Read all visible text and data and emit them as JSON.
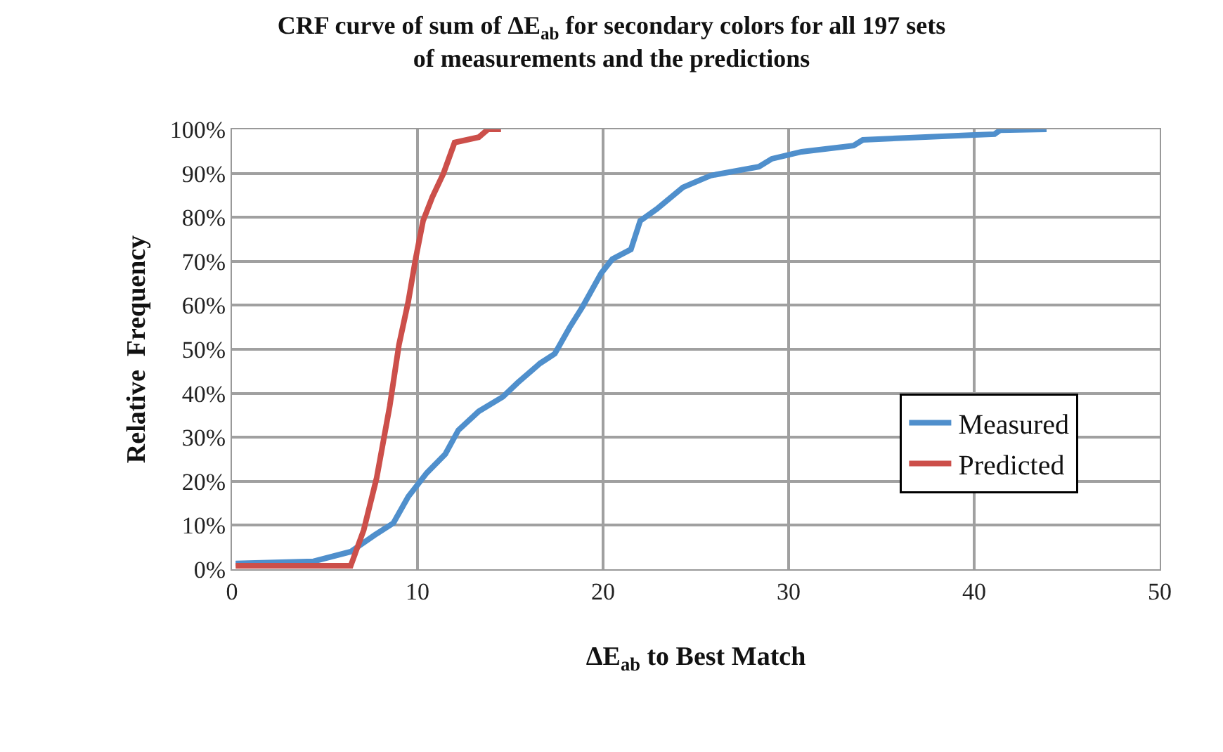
{
  "chart_data": {
    "type": "line",
    "title": "CRF curve of sum of ΔE$_{ab}$ for secondary colors for all 197 sets\nof measurements and the predictions",
    "xlabel": "ΔE$_{ab}$ to Best Match",
    "ylabel": "Relative  Frequency",
    "xlim": [
      0,
      50
    ],
    "xticks": [
      0,
      10,
      20,
      30,
      40,
      50
    ],
    "ylim": [
      0,
      100
    ],
    "yticks": [
      {
        "value": 0,
        "label": "0%"
      },
      {
        "value": 10,
        "label": "10%"
      },
      {
        "value": 20,
        "label": "20%"
      },
      {
        "value": 30,
        "label": "30%"
      },
      {
        "value": 40,
        "label": "40%"
      },
      {
        "value": 50,
        "label": "50%"
      },
      {
        "value": 60,
        "label": "60%"
      },
      {
        "value": 70,
        "label": "70%"
      },
      {
        "value": 80,
        "label": "80%"
      },
      {
        "value": 90,
        "label": "90%"
      },
      {
        "value": 100,
        "label": "100%"
      }
    ],
    "grid": true,
    "legend": "right",
    "marker": "none",
    "line_style": "solid",
    "series": [
      {
        "name": "Measured",
        "color": "#4f8fcc",
        "x": [
          0.2,
          4.4,
          6.4,
          7.7,
          8.7,
          9.5,
          10.5,
          11.5,
          12.2,
          13.3,
          14.6,
          15.4,
          16.6,
          17.4,
          18.2,
          18.9,
          19.9,
          20.5,
          21.5,
          22.0,
          22.9,
          24.3,
          25.8,
          28.4,
          29.1,
          30.7,
          33.5,
          34.0,
          39.8,
          41.1,
          41.4,
          43.9
        ],
        "values": [
          1.3,
          1.8,
          4,
          7.8,
          10.5,
          16.5,
          21.9,
          26.2,
          31.6,
          35.9,
          39.2,
          42.4,
          46.8,
          49,
          55,
          59.7,
          67.3,
          70.5,
          72.7,
          79.2,
          81.9,
          86.8,
          89.5,
          91.5,
          93.3,
          94.9,
          96.3,
          97.6,
          98.7,
          98.9,
          99.8,
          100
        ]
      },
      {
        "name": "Predicted",
        "color": "#cc4f4a",
        "x": [
          0.2,
          6.4,
          7.1,
          7.8,
          8.5,
          9.0,
          9.5,
          9.9,
          10.3,
          10.8,
          11.4,
          12.0,
          13.3,
          13.8,
          14.5
        ],
        "values": [
          0.8,
          0.8,
          8.9,
          20.8,
          37,
          51,
          60.8,
          70.6,
          79.2,
          84.6,
          90,
          97,
          98.2,
          100,
          100
        ]
      }
    ]
  }
}
